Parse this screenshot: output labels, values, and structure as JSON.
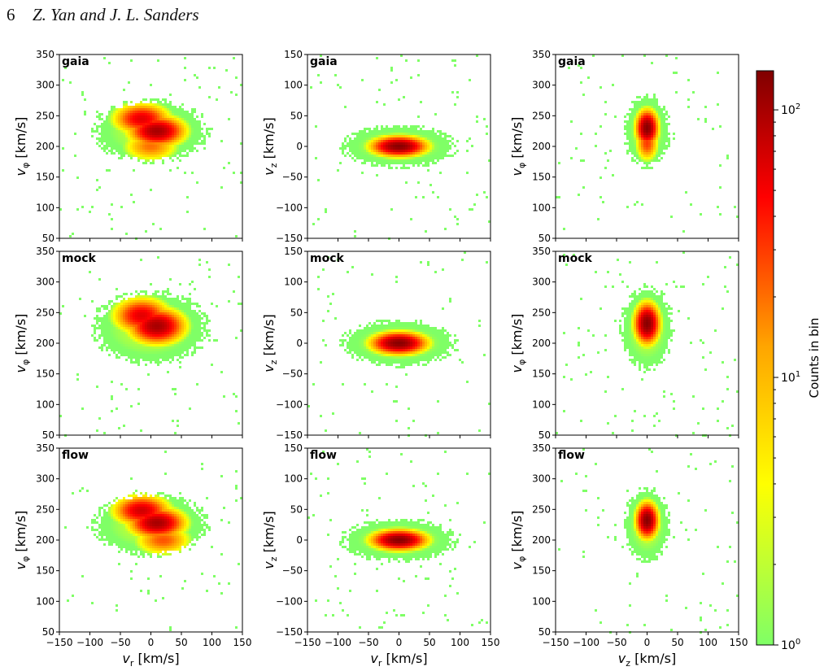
{
  "header": {
    "page_number": "6",
    "authors": "Z. Yan and J. L. Sanders"
  },
  "panel_labels": [
    "gaia",
    "mock",
    "flow"
  ],
  "colorbar": {
    "label": "Counts in bin",
    "scale": "log",
    "range": [
      1,
      140
    ],
    "ticks": [
      "10",
      "10"
    ],
    "tick_exponents": [
      "2",
      "1",
      "0"
    ],
    "tick_values": [
      100,
      10,
      1
    ],
    "tick_bases": [
      "10",
      "10",
      "10"
    ],
    "colormap": [
      "#7fff66",
      "#ffff00",
      "#ffa500",
      "#ff0000",
      "#800000"
    ]
  },
  "chart_data": [
    {
      "type": "heatmap",
      "row": "gaia",
      "x": "v_r",
      "y": "v_phi",
      "xlabel": "v_r [km/s]",
      "ylabel": "v_φ [km/s]",
      "xlim": [
        -150,
        150
      ],
      "ylim": [
        50,
        350
      ],
      "xticks": [
        "−150",
        "−100",
        "−50",
        "0",
        "50",
        "100",
        "150"
      ],
      "yticks": [
        "50",
        "100",
        "150",
        "200",
        "250",
        "300",
        "350"
      ],
      "density_peaks": [
        {
          "x": -15,
          "y": 245,
          "counts": 60
        },
        {
          "x": 10,
          "y": 225,
          "counts": 100
        },
        {
          "x": 0,
          "y": 200,
          "counts": 20
        }
      ],
      "spread": [
        55,
        30
      ]
    },
    {
      "type": "heatmap",
      "row": "gaia",
      "x": "v_r",
      "y": "v_z",
      "xlabel": "v_r [km/s]",
      "ylabel": "v_z [km/s]",
      "xlim": [
        -150,
        150
      ],
      "ylim": [
        -150,
        150
      ],
      "xticks": [
        "−150",
        "−100",
        "−50",
        "0",
        "50",
        "100",
        "150"
      ],
      "yticks": [
        "−150",
        "−100",
        "−50",
        "0",
        "50",
        "100",
        "150"
      ],
      "density_peaks": [
        {
          "x": 0,
          "y": 0,
          "counts": 130
        }
      ],
      "spread": [
        55,
        20
      ]
    },
    {
      "type": "heatmap",
      "row": "gaia",
      "x": "v_z",
      "y": "v_phi",
      "xlabel": "v_z [km/s]",
      "ylabel": "v_φ [km/s]",
      "xlim": [
        -150,
        150
      ],
      "ylim": [
        50,
        350
      ],
      "xticks": [
        "−150",
        "−100",
        "−50",
        "0",
        "50",
        "100",
        "150"
      ],
      "yticks": [
        "50",
        "100",
        "150",
        "200",
        "250",
        "300",
        "350"
      ],
      "density_peaks": [
        {
          "x": 0,
          "y": 230,
          "counts": 130
        },
        {
          "x": 0,
          "y": 205,
          "counts": 30
        }
      ],
      "spread": [
        22,
        35
      ]
    },
    {
      "type": "heatmap",
      "row": "mock",
      "x": "v_r",
      "y": "v_phi",
      "xlabel": "v_r [km/s]",
      "ylabel": "v_φ [km/s]",
      "xlim": [
        -150,
        150
      ],
      "ylim": [
        50,
        350
      ],
      "xticks": [
        "−150",
        "−100",
        "−50",
        "0",
        "50",
        "100",
        "150"
      ],
      "yticks": [
        "50",
        "100",
        "150",
        "200",
        "250",
        "300",
        "350"
      ],
      "density_peaks": [
        {
          "x": -15,
          "y": 245,
          "counts": 60
        },
        {
          "x": 10,
          "y": 228,
          "counts": 100
        }
      ],
      "spread": [
        55,
        35
      ]
    },
    {
      "type": "heatmap",
      "row": "mock",
      "x": "v_r",
      "y": "v_z",
      "xlabel": "v_r [km/s]",
      "ylabel": "v_z [km/s]",
      "xlim": [
        -150,
        150
      ],
      "ylim": [
        -150,
        150
      ],
      "xticks": [
        "−150",
        "−100",
        "−50",
        "0",
        "50",
        "100",
        "150"
      ],
      "yticks": [
        "−150",
        "−100",
        "−50",
        "0",
        "50",
        "100",
        "150"
      ],
      "density_peaks": [
        {
          "x": 0,
          "y": 0,
          "counts": 130
        }
      ],
      "spread": [
        55,
        22
      ]
    },
    {
      "type": "heatmap",
      "row": "mock",
      "x": "v_z",
      "y": "v_phi",
      "xlabel": "v_z [km/s]",
      "ylabel": "v_φ [km/s]",
      "xlim": [
        -150,
        150
      ],
      "ylim": [
        50,
        350
      ],
      "xticks": [
        "−150",
        "−100",
        "−50",
        "0",
        "50",
        "100",
        "150"
      ],
      "yticks": [
        "50",
        "100",
        "150",
        "200",
        "250",
        "300",
        "350"
      ],
      "density_peaks": [
        {
          "x": 0,
          "y": 232,
          "counts": 130
        }
      ],
      "spread": [
        25,
        40
      ]
    },
    {
      "type": "heatmap",
      "row": "flow",
      "x": "v_r",
      "y": "v_phi",
      "xlabel": "v_r [km/s]",
      "ylabel": "v_φ [km/s]",
      "xlim": [
        -150,
        150
      ],
      "ylim": [
        50,
        350
      ],
      "xticks": [
        "−150",
        "−100",
        "−50",
        "0",
        "50",
        "100",
        "150"
      ],
      "yticks": [
        "50",
        "100",
        "150",
        "200",
        "250",
        "300",
        "350"
      ],
      "density_peaks": [
        {
          "x": -15,
          "y": 248,
          "counts": 70
        },
        {
          "x": 10,
          "y": 228,
          "counts": 100
        },
        {
          "x": 20,
          "y": 200,
          "counts": 25
        }
      ],
      "spread": [
        55,
        30
      ]
    },
    {
      "type": "heatmap",
      "row": "flow",
      "x": "v_r",
      "y": "v_z",
      "xlabel": "v_r [km/s]",
      "ylabel": "v_z [km/s]",
      "xlim": [
        -150,
        150
      ],
      "ylim": [
        -150,
        150
      ],
      "xticks": [
        "−150",
        "−100",
        "−50",
        "0",
        "50",
        "100",
        "150"
      ],
      "yticks": [
        "−150",
        "−100",
        "−50",
        "0",
        "50",
        "100",
        "150"
      ],
      "density_peaks": [
        {
          "x": 0,
          "y": 0,
          "counts": 130
        }
      ],
      "spread": [
        55,
        20
      ]
    },
    {
      "type": "heatmap",
      "row": "flow",
      "x": "v_z",
      "y": "v_phi",
      "xlabel": "v_z [km/s]",
      "ylabel": "v_φ [km/s]",
      "xlim": [
        -150,
        150
      ],
      "ylim": [
        50,
        350
      ],
      "xticks": [
        "−150",
        "−100",
        "−50",
        "0",
        "50",
        "100",
        "150"
      ],
      "yticks": [
        "50",
        "100",
        "150",
        "200",
        "250",
        "300",
        "350"
      ],
      "density_peaks": [
        {
          "x": 0,
          "y": 232,
          "counts": 130
        }
      ],
      "spread": [
        22,
        35
      ]
    }
  ]
}
